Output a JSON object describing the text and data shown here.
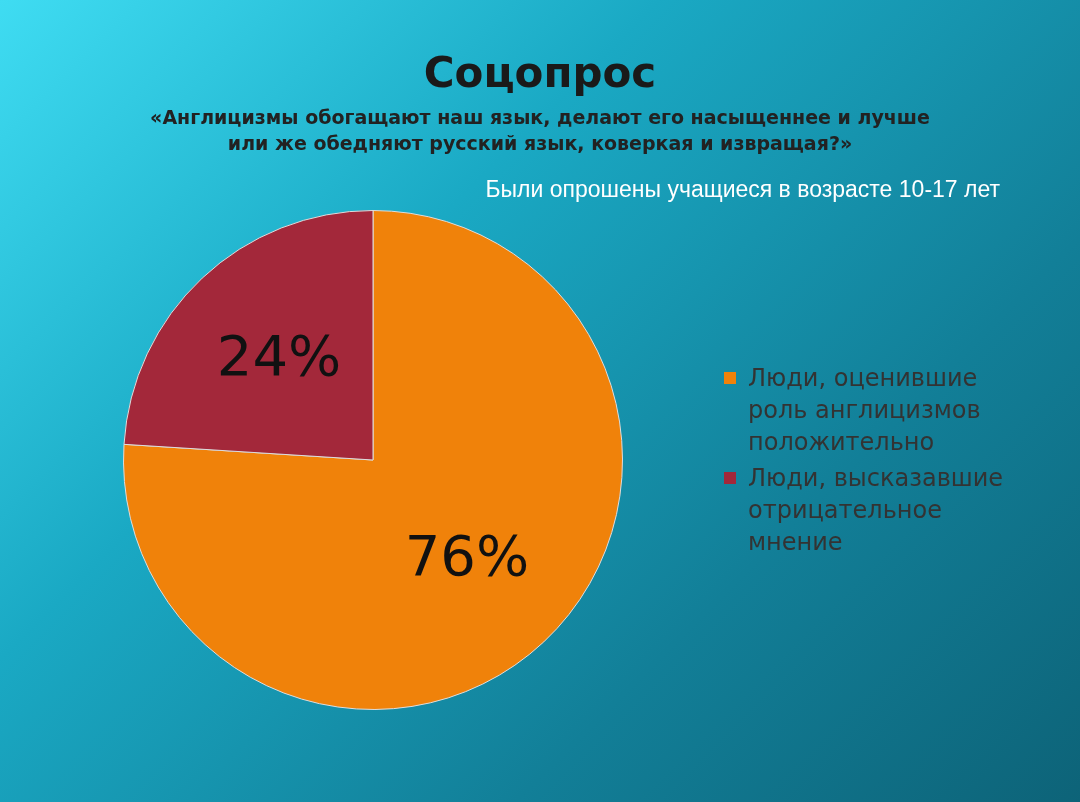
{
  "chart_data": {
    "type": "pie",
    "title": "Соцопрос",
    "subtitle": "«Англицизмы обогащают наш язык, делают его насыщеннее и лучше или же обедняют русский язык, коверкая и извращая?»",
    "annotations": [
      "Были опрошены учащиеся в возрасте 10-17 лет"
    ],
    "categories": [
      "Люди, оценившие роль англицизмов положительно",
      "Люди, высказавшие отрицательное мнение"
    ],
    "values": [
      76,
      24
    ],
    "value_labels": [
      "76%",
      "24%"
    ],
    "colors": [
      "#f0820a",
      "#a3283a"
    ],
    "legend": "right"
  }
}
